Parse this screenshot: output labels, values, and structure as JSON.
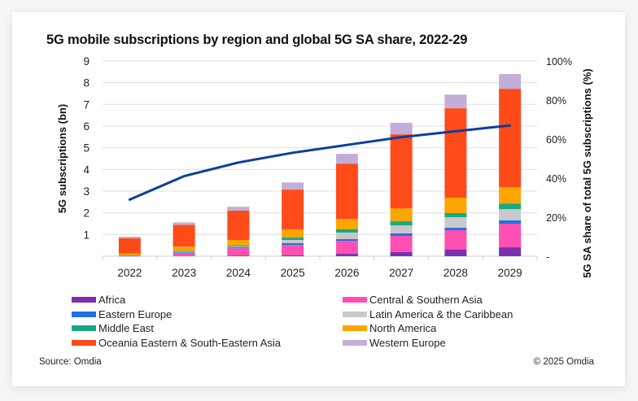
{
  "chart_data": {
    "type": "bar",
    "stacked": true,
    "title": "5G mobile subscriptions by region and global 5G SA share, 2022-29",
    "xlabel": "",
    "ylabel": "5G subscriptions (bn)",
    "y2label": "5G SA share of total 5G subscriptions (%)",
    "ylim": [
      0,
      9
    ],
    "y2lim": [
      0,
      100
    ],
    "yticks": [
      "",
      "1",
      "2",
      "3",
      "4",
      "5",
      "6",
      "7",
      "8",
      "9"
    ],
    "y2ticks": [
      "-",
      "20%",
      "40%",
      "60%",
      "80%",
      "100%"
    ],
    "grid": true,
    "legend_position": "bottom",
    "categories": [
      "2022",
      "2023",
      "2024",
      "2025",
      "2026",
      "2027",
      "2028",
      "2029"
    ],
    "series": [
      {
        "name": "Africa",
        "color": "#7b2fb0",
        "values": [
          0.0,
          0.0,
          0.02,
          0.04,
          0.11,
          0.19,
          0.3,
          0.41
        ]
      },
      {
        "name": "Central & Southern Asia",
        "color": "#ff4fb2",
        "values": [
          0.01,
          0.15,
          0.35,
          0.48,
          0.6,
          0.75,
          0.9,
          1.09
        ]
      },
      {
        "name": "Eastern Europe",
        "color": "#1f6fe5",
        "values": [
          0.01,
          0.03,
          0.04,
          0.08,
          0.08,
          0.11,
          0.11,
          0.15
        ]
      },
      {
        "name": "Latin America & the Caribbean",
        "color": "#c8c8c8",
        "values": [
          0.01,
          0.03,
          0.04,
          0.15,
          0.3,
          0.37,
          0.49,
          0.52
        ]
      },
      {
        "name": "Middle East",
        "color": "#16a884",
        "values": [
          0.01,
          0.04,
          0.04,
          0.11,
          0.15,
          0.19,
          0.19,
          0.26
        ]
      },
      {
        "name": "North America",
        "color": "#ffa500",
        "values": [
          0.08,
          0.19,
          0.26,
          0.38,
          0.48,
          0.6,
          0.71,
          0.75
        ]
      },
      {
        "name": "Oceania Eastern & South-Eastern Asia",
        "color": "#ff4a1a",
        "values": [
          0.71,
          1.01,
          1.35,
          1.83,
          2.55,
          3.41,
          4.12,
          4.54
        ]
      },
      {
        "name": "Western Europe",
        "color": "#c3aed9",
        "values": [
          0.07,
          0.11,
          0.18,
          0.33,
          0.45,
          0.53,
          0.63,
          0.68
        ]
      }
    ],
    "line_series": {
      "name": "Global 5G SA share",
      "axis": "right",
      "color": "#0a3f9c",
      "values": [
        29,
        41,
        48,
        53,
        57,
        61,
        64,
        67
      ]
    }
  },
  "footer": {
    "source": "Source: Omdia",
    "copyright": "© 2025 Omdia"
  }
}
